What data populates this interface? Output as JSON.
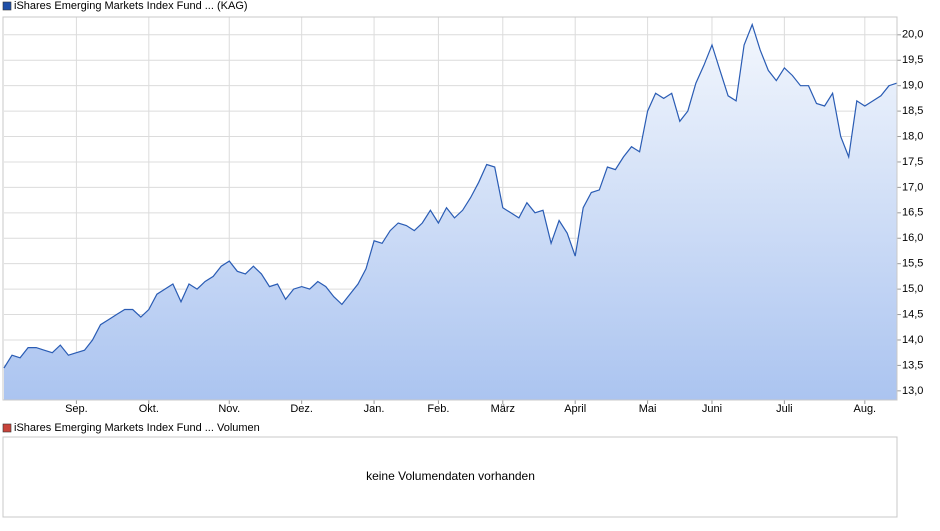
{
  "chart_data": [
    {
      "type": "line",
      "title": "iShares Emerging Markets Index Fund ... (KAG)",
      "legend_color": "#1f4fa8",
      "categories": [
        null,
        null,
        null,
        null,
        null,
        null,
        null,
        null,
        null,
        "Sep.",
        null,
        null,
        null,
        null,
        null,
        null,
        null,
        null,
        "Okt.",
        null,
        null,
        null,
        null,
        null,
        null,
        null,
        null,
        null,
        "Nov.",
        null,
        null,
        null,
        null,
        null,
        null,
        null,
        null,
        "Dez.",
        null,
        null,
        null,
        null,
        null,
        null,
        null,
        null,
        "Jan.",
        null,
        null,
        null,
        null,
        null,
        null,
        null,
        "Feb.",
        null,
        null,
        null,
        null,
        null,
        null,
        null,
        "März",
        null,
        null,
        null,
        null,
        null,
        null,
        null,
        null,
        "April",
        null,
        null,
        null,
        null,
        null,
        null,
        null,
        null,
        "Mai",
        null,
        null,
        null,
        null,
        null,
        null,
        null,
        "Juni",
        null,
        null,
        null,
        null,
        null,
        null,
        null,
        null,
        "Juli",
        null,
        null,
        null,
        null,
        null,
        null,
        null,
        null,
        null,
        "Aug.",
        null,
        null,
        null,
        null
      ],
      "series": [
        {
          "color": "#2a5cb4",
          "values": [
            13.45,
            13.7,
            13.65,
            13.85,
            13.85,
            13.8,
            13.75,
            13.9,
            13.7,
            13.75,
            13.8,
            14.0,
            14.3,
            14.4,
            14.5,
            14.6,
            14.6,
            14.45,
            14.6,
            14.9,
            15.0,
            15.1,
            14.75,
            15.1,
            15.0,
            15.15,
            15.25,
            15.45,
            15.55,
            15.35,
            15.3,
            15.45,
            15.3,
            15.05,
            15.1,
            14.8,
            15.0,
            15.05,
            15.0,
            15.15,
            15.05,
            14.85,
            14.7,
            14.9,
            15.1,
            15.4,
            15.95,
            15.9,
            16.15,
            16.3,
            16.25,
            16.15,
            16.3,
            16.55,
            16.3,
            16.6,
            16.4,
            16.55,
            16.8,
            17.1,
            17.45,
            17.4,
            16.6,
            16.5,
            16.4,
            16.7,
            16.5,
            16.55,
            15.9,
            16.35,
            16.1,
            15.65,
            16.6,
            16.9,
            16.95,
            17.4,
            17.35,
            17.6,
            17.8,
            17.7,
            18.5,
            18.85,
            18.75,
            18.85,
            18.3,
            18.5,
            19.05,
            19.4,
            19.8,
            19.3,
            18.8,
            18.7,
            19.8,
            20.2,
            19.7,
            19.3,
            19.1,
            19.35,
            19.2,
            19.0,
            19.0,
            18.65,
            18.6,
            18.85,
            18.0,
            17.6,
            18.7,
            18.6,
            18.7,
            18.8,
            19.0,
            19.05
          ]
        }
      ],
      "ylim": [
        12.82,
        20.35
      ],
      "yticks": [
        {
          "value": 13,
          "label": "13,0"
        },
        {
          "value": 13.5,
          "label": "13,5"
        },
        {
          "value": 14,
          "label": "14,0"
        },
        {
          "value": 14.5,
          "label": "14,5"
        },
        {
          "value": 15,
          "label": "15,0"
        },
        {
          "value": 15.5,
          "label": "15,5"
        },
        {
          "value": 16,
          "label": "16,0"
        },
        {
          "value": 16.5,
          "label": "16,5"
        },
        {
          "value": 17,
          "label": "17,0"
        },
        {
          "value": 17.5,
          "label": "17,5"
        },
        {
          "value": 18,
          "label": "18,0"
        },
        {
          "value": 18.5,
          "label": "18,5"
        },
        {
          "value": 19,
          "label": "19,0"
        },
        {
          "value": 19.5,
          "label": "19,5"
        },
        {
          "value": 20,
          "label": "20,0"
        }
      ],
      "grid": true,
      "area": true
    },
    {
      "type": "bar",
      "title": "iShares Emerging Markets Index Fund ... Volumen",
      "legend_color": "#c8433a",
      "message": "keine Volumendaten vorhanden"
    }
  ]
}
